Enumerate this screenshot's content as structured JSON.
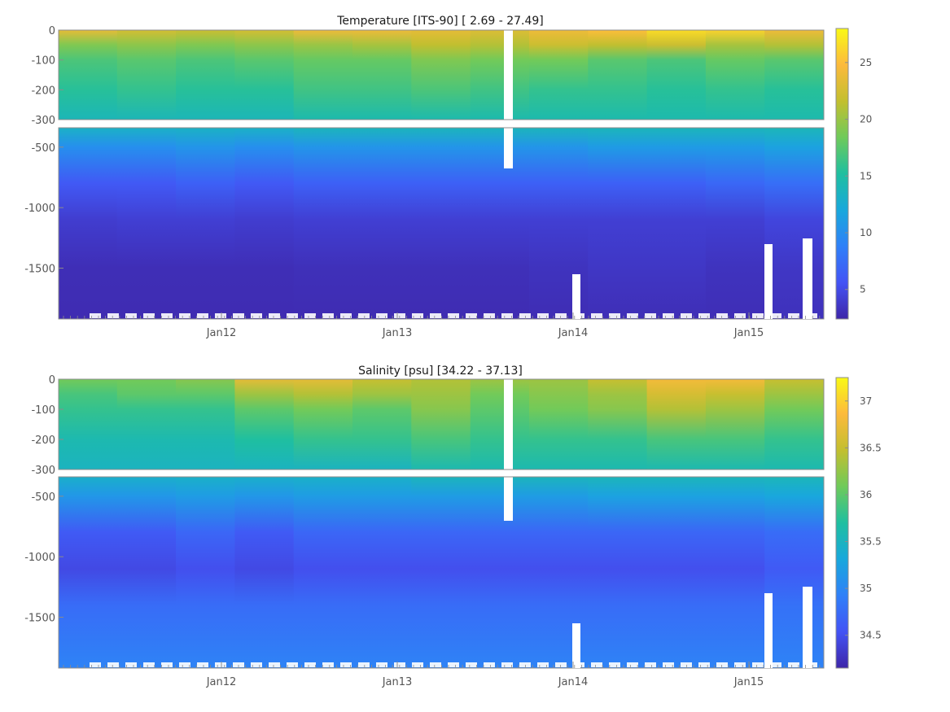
{
  "chart_data": [
    {
      "type": "heatmap",
      "variable": "temperature",
      "title": "Temperature [ITS-90]   [ 2.69 - 27.49]",
      "x_ticks": [
        "Jan12",
        "Jan13",
        "Jan14",
        "Jan15"
      ],
      "y_ticks_upper": [
        "0",
        "-100",
        "-200",
        "-300"
      ],
      "y_ticks_lower": [
        "-500",
        "-1000",
        "-1500"
      ],
      "depth_range_upper": [
        -300,
        0
      ],
      "depth_range_lower": [
        -1920,
        -340
      ],
      "colorbar": {
        "ticks": [
          "5",
          "10",
          "15",
          "20",
          "25"
        ],
        "tick_values": [
          5,
          10,
          15,
          20,
          25
        ],
        "range": [
          2.4,
          28
        ]
      },
      "layers": [
        {
          "depth": 0,
          "values": [
            23.5,
            22.5,
            22.0,
            22.5,
            24.0,
            24.0,
            23.5,
            23.0,
            24.0,
            25.0,
            26.5,
            26.0,
            24.0
          ]
        },
        {
          "depth": -50,
          "values": [
            19.0,
            19.5,
            19.0,
            19.5,
            20.0,
            20.5,
            21.5,
            21.0,
            22.0,
            21.5,
            22.0,
            20.5,
            21.0
          ]
        },
        {
          "depth": -100,
          "values": [
            17.0,
            17.5,
            17.0,
            17.5,
            18.0,
            18.0,
            19.0,
            18.5,
            18.5,
            17.5,
            17.0,
            18.0,
            17.5
          ]
        },
        {
          "depth": -200,
          "values": [
            15.5,
            16.0,
            15.5,
            15.5,
            16.5,
            16.5,
            17.0,
            16.5,
            16.0,
            16.0,
            15.5,
            16.0,
            15.5
          ]
        },
        {
          "depth": -300,
          "values": [
            14.0,
            14.0,
            14.0,
            14.0,
            14.5,
            14.5,
            14.5,
            14.5,
            14.5,
            14.5,
            14.5,
            14.5,
            14.5
          ]
        },
        {
          "depth": -500,
          "values": [
            10.0,
            10.0,
            10.5,
            10.0,
            10.5,
            10.5,
            10.5,
            10.5,
            10.5,
            11.0,
            11.0,
            11.0,
            11.5
          ]
        },
        {
          "depth": -800,
          "values": [
            6.0,
            6.0,
            6.5,
            6.0,
            6.5,
            6.5,
            6.5,
            6.5,
            6.5,
            6.5,
            6.5,
            7.0,
            7.5
          ]
        },
        {
          "depth": -1100,
          "values": [
            4.0,
            4.2,
            4.2,
            4.0,
            4.2,
            4.2,
            4.2,
            4.2,
            4.2,
            4.2,
            4.2,
            4.2,
            4.6
          ]
        },
        {
          "depth": -1500,
          "values": [
            3.0,
            3.0,
            3.0,
            3.0,
            3.1,
            3.1,
            3.1,
            3.1,
            3.3,
            3.6,
            3.6,
            3.3,
            3.6
          ]
        },
        {
          "depth": -1920,
          "values": [
            2.8,
            2.8,
            2.8,
            2.8,
            2.8,
            2.8,
            2.8,
            2.8,
            2.9,
            3.0,
            3.0,
            3.0,
            3.2
          ]
        }
      ]
    },
    {
      "type": "heatmap",
      "variable": "salinity",
      "title": "Salinity [psu]   [34.22 - 37.13]",
      "x_ticks": [
        "Jan12",
        "Jan13",
        "Jan14",
        "Jan15"
      ],
      "y_ticks_upper": [
        "0",
        "-100",
        "-200",
        "-300"
      ],
      "y_ticks_lower": [
        "-500",
        "-1000",
        "-1500"
      ],
      "depth_range_upper": [
        -300,
        0
      ],
      "depth_range_lower": [
        -1920,
        -340
      ],
      "colorbar": {
        "ticks": [
          "34.5",
          "35",
          "35.5",
          "36",
          "36.5",
          "37"
        ],
        "tick_values": [
          34.5,
          35,
          35.5,
          36,
          36.5,
          37
        ],
        "range": [
          34.15,
          37.25
        ]
      },
      "layers": [
        {
          "depth": 0,
          "values": [
            36.1,
            36.1,
            36.2,
            36.7,
            36.7,
            36.5,
            36.4,
            36.3,
            36.3,
            36.5,
            36.8,
            36.8,
            36.5
          ]
        },
        {
          "depth": -50,
          "values": [
            35.9,
            36.0,
            36.0,
            36.3,
            36.4,
            36.3,
            36.3,
            36.1,
            36.2,
            36.3,
            36.6,
            36.5,
            36.3
          ]
        },
        {
          "depth": -100,
          "values": [
            35.8,
            35.8,
            35.8,
            36.0,
            36.1,
            36.0,
            36.2,
            36.0,
            36.1,
            36.2,
            36.4,
            36.3,
            36.1
          ]
        },
        {
          "depth": -200,
          "values": [
            35.6,
            35.6,
            35.6,
            35.7,
            35.8,
            35.8,
            35.9,
            35.8,
            35.8,
            35.8,
            35.9,
            35.9,
            35.8
          ]
        },
        {
          "depth": -300,
          "values": [
            35.5,
            35.5,
            35.5,
            35.5,
            35.5,
            35.5,
            35.6,
            35.6,
            35.6,
            35.6,
            35.6,
            35.6,
            35.6
          ]
        },
        {
          "depth": -500,
          "values": [
            35.15,
            35.15,
            35.2,
            35.15,
            35.2,
            35.2,
            35.2,
            35.2,
            35.2,
            35.25,
            35.25,
            35.25,
            35.3
          ]
        },
        {
          "depth": -800,
          "values": [
            34.6,
            34.6,
            34.7,
            34.6,
            34.7,
            34.7,
            34.7,
            34.7,
            34.7,
            34.7,
            34.7,
            34.7,
            34.75
          ]
        },
        {
          "depth": -1100,
          "values": [
            34.45,
            34.45,
            34.5,
            34.45,
            34.5,
            34.5,
            34.5,
            34.5,
            34.5,
            34.5,
            34.5,
            34.5,
            34.6
          ]
        },
        {
          "depth": -1400,
          "values": [
            34.75,
            34.75,
            34.75,
            34.75,
            34.75,
            34.75,
            34.75,
            34.75,
            34.75,
            34.75,
            34.75,
            34.75,
            34.8
          ]
        },
        {
          "depth": -1920,
          "values": [
            34.95,
            34.95,
            34.95,
            34.95,
            34.95,
            34.95,
            34.95,
            34.95,
            34.95,
            34.95,
            34.95,
            34.95,
            34.95
          ]
        }
      ]
    }
  ],
  "colors": {
    "colormap": [
      "#3e26a8",
      "#4353f5",
      "#2f80f8",
      "#18a8dc",
      "#1fbfa0",
      "#6fca5a",
      "#c3bf2f",
      "#fcba3c",
      "#f9f915"
    ],
    "frame": "#8c8c8c"
  }
}
